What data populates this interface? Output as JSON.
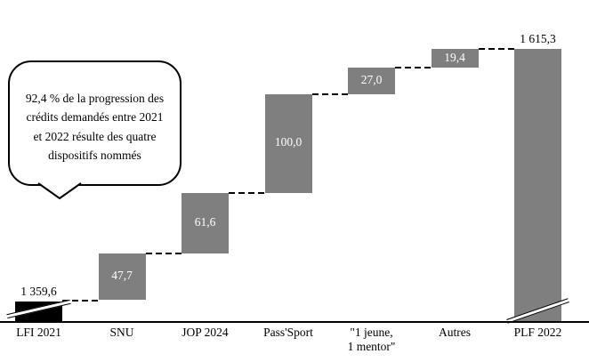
{
  "chart_data": {
    "type": "waterfall",
    "title": "",
    "categories": [
      "LFI 2021",
      "SNU",
      "JOP 2024",
      "Pass'Sport",
      "\"1 jeune,\n1 mentor\"",
      "Autres",
      "PLF 2022"
    ],
    "values": [
      1359.6,
      47.7,
      61.6,
      100.0,
      27.0,
      19.4,
      1615.3
    ],
    "display_values": [
      "1 359,6",
      "47,7",
      "61,6",
      "100,0",
      "27,0",
      "19,4",
      "1 615,3"
    ],
    "roles": [
      "base",
      "delta",
      "delta",
      "delta",
      "delta",
      "delta",
      "total"
    ],
    "axis_break_bars": [
      "LFI 2021",
      "PLF 2022"
    ],
    "connector_style": "dashed",
    "legend": "none",
    "grid": "off",
    "colors": {
      "delta_bar": "#7f7f7f",
      "base_bar": "#000000",
      "total_bar": "#7f7f7f",
      "in_bar_text": "#ffffff",
      "outside_text": "#000000",
      "axis_line": "#000000",
      "background": "#ffffff"
    },
    "annotation": {
      "text": "92,4 % de la progression des\ncrédits demandés entre 2021\net 2022 résulte des quatre\ndispositifs nommés"
    }
  }
}
